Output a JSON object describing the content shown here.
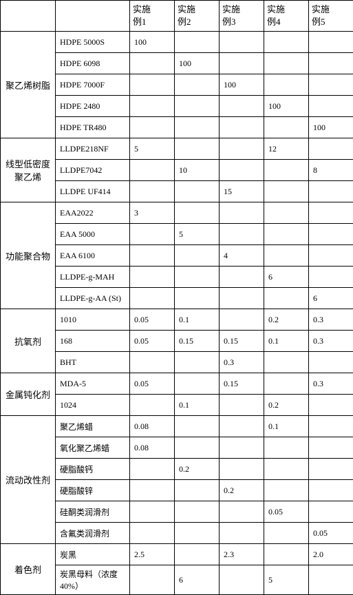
{
  "header": {
    "blank1": "",
    "blank2": "",
    "cols": [
      "实施例1",
      "实施例2",
      "实施例3",
      "实施例4",
      "实施例5"
    ]
  },
  "groups": [
    {
      "name": "聚乙烯树脂",
      "rows": [
        {
          "sub": "HDPE 5000S",
          "v": [
            "100",
            "",
            "",
            "",
            ""
          ]
        },
        {
          "sub": "HDPE 6098",
          "v": [
            "",
            "100",
            "",
            "",
            ""
          ]
        },
        {
          "sub": "HDPE 7000F",
          "v": [
            "",
            "",
            "100",
            "",
            ""
          ]
        },
        {
          "sub": "HDPE 2480",
          "v": [
            "",
            "",
            "",
            "100",
            ""
          ]
        },
        {
          "sub": "HDPE TR480",
          "v": [
            "",
            "",
            "",
            "",
            "100"
          ]
        }
      ]
    },
    {
      "name": "线型低密度聚乙烯",
      "rows": [
        {
          "sub": "LLDPE218NF",
          "v": [
            "5",
            "",
            "",
            "12",
            ""
          ]
        },
        {
          "sub": "LLDPE7042",
          "v": [
            "",
            "10",
            "",
            "",
            "8"
          ]
        },
        {
          "sub": "LLDPE UF414",
          "v": [
            "",
            "",
            "15",
            "",
            ""
          ]
        }
      ]
    },
    {
      "name": "功能聚合物",
      "rows": [
        {
          "sub": "EAA2022",
          "v": [
            "3",
            "",
            "",
            "",
            ""
          ]
        },
        {
          "sub": "EAA 5000",
          "v": [
            "",
            "5",
            "",
            "",
            ""
          ]
        },
        {
          "sub": "EAA 6100",
          "v": [
            "",
            "",
            "4",
            "",
            ""
          ]
        },
        {
          "sub": "LLDPE-g-MAH",
          "v": [
            "",
            "",
            "",
            "6",
            ""
          ]
        },
        {
          "sub": "LLDPE-g-AA (St)",
          "v": [
            "",
            "",
            "",
            "",
            "6"
          ]
        }
      ]
    },
    {
      "name": "抗氧剂",
      "rows": [
        {
          "sub": "1010",
          "v": [
            "0.05",
            "0.1",
            "",
            "0.2",
            "0.3"
          ]
        },
        {
          "sub": "168",
          "v": [
            "0.05",
            "0.15",
            "0.15",
            "0.1",
            "0.3"
          ]
        },
        {
          "sub": "BHT",
          "v": [
            "",
            "",
            "0.3",
            "",
            ""
          ]
        }
      ]
    },
    {
      "name": "金属钝化剂",
      "rows": [
        {
          "sub": "MDA-5",
          "v": [
            "0.05",
            "",
            "0.15",
            "",
            "0.3"
          ]
        },
        {
          "sub": "1024",
          "v": [
            "",
            "0.1",
            "",
            "0.2",
            ""
          ]
        }
      ]
    },
    {
      "name": "流动改性剂",
      "rows": [
        {
          "sub": "聚乙烯蜡",
          "v": [
            "0.08",
            "",
            "",
            "0.1",
            ""
          ]
        },
        {
          "sub": "氧化聚乙烯蜡",
          "v": [
            "0.08",
            "",
            "",
            "",
            ""
          ]
        },
        {
          "sub": "硬脂酸钙",
          "v": [
            "",
            "0.2",
            "",
            "",
            ""
          ]
        },
        {
          "sub": "硬脂酸锌",
          "v": [
            "",
            "",
            "0.2",
            "",
            ""
          ]
        },
        {
          "sub": "硅酮类润滑剂",
          "v": [
            "",
            "",
            "",
            "0.05",
            ""
          ]
        },
        {
          "sub": "含氟类润滑剂",
          "v": [
            "",
            "",
            "",
            "",
            "0.05"
          ]
        }
      ]
    },
    {
      "name": "着色剂",
      "rows": [
        {
          "sub": "炭黑",
          "v": [
            "2.5",
            "",
            "2.3",
            "",
            "2.0"
          ]
        },
        {
          "sub": "炭黑母料（浓度40%）",
          "v": [
            "",
            "6",
            "",
            "5",
            ""
          ]
        }
      ]
    }
  ],
  "style": {
    "border_color": "#000000",
    "background_color": "#ffffff",
    "font_family": "SimSun",
    "base_fontsize": 13
  }
}
